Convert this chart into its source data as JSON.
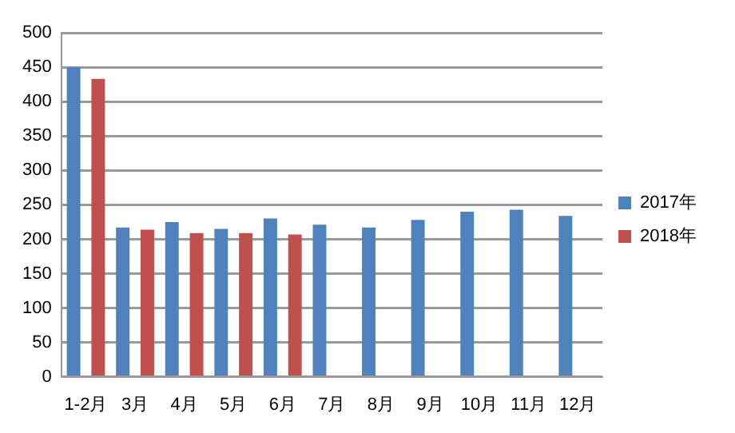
{
  "chart_data": {
    "type": "bar",
    "categories": [
      "1-2月",
      "3月",
      "4月",
      "5月",
      "6月",
      "7月",
      "8月",
      "9月",
      "10月",
      "11月",
      "12月"
    ],
    "series": [
      {
        "name": "2017年",
        "color": "#4f81bd",
        "values": [
          450,
          217,
          225,
          215,
          230,
          221,
          217,
          228,
          240,
          243,
          234
        ]
      },
      {
        "name": "2018年",
        "color": "#c0504d",
        "values": [
          433,
          214,
          209,
          209,
          207,
          null,
          null,
          null,
          null,
          null,
          null
        ]
      }
    ],
    "ylim": [
      0,
      500
    ],
    "yticks": [
      0,
      50,
      100,
      150,
      200,
      250,
      300,
      350,
      400,
      450,
      500
    ],
    "grid": "y",
    "legend": "right"
  }
}
